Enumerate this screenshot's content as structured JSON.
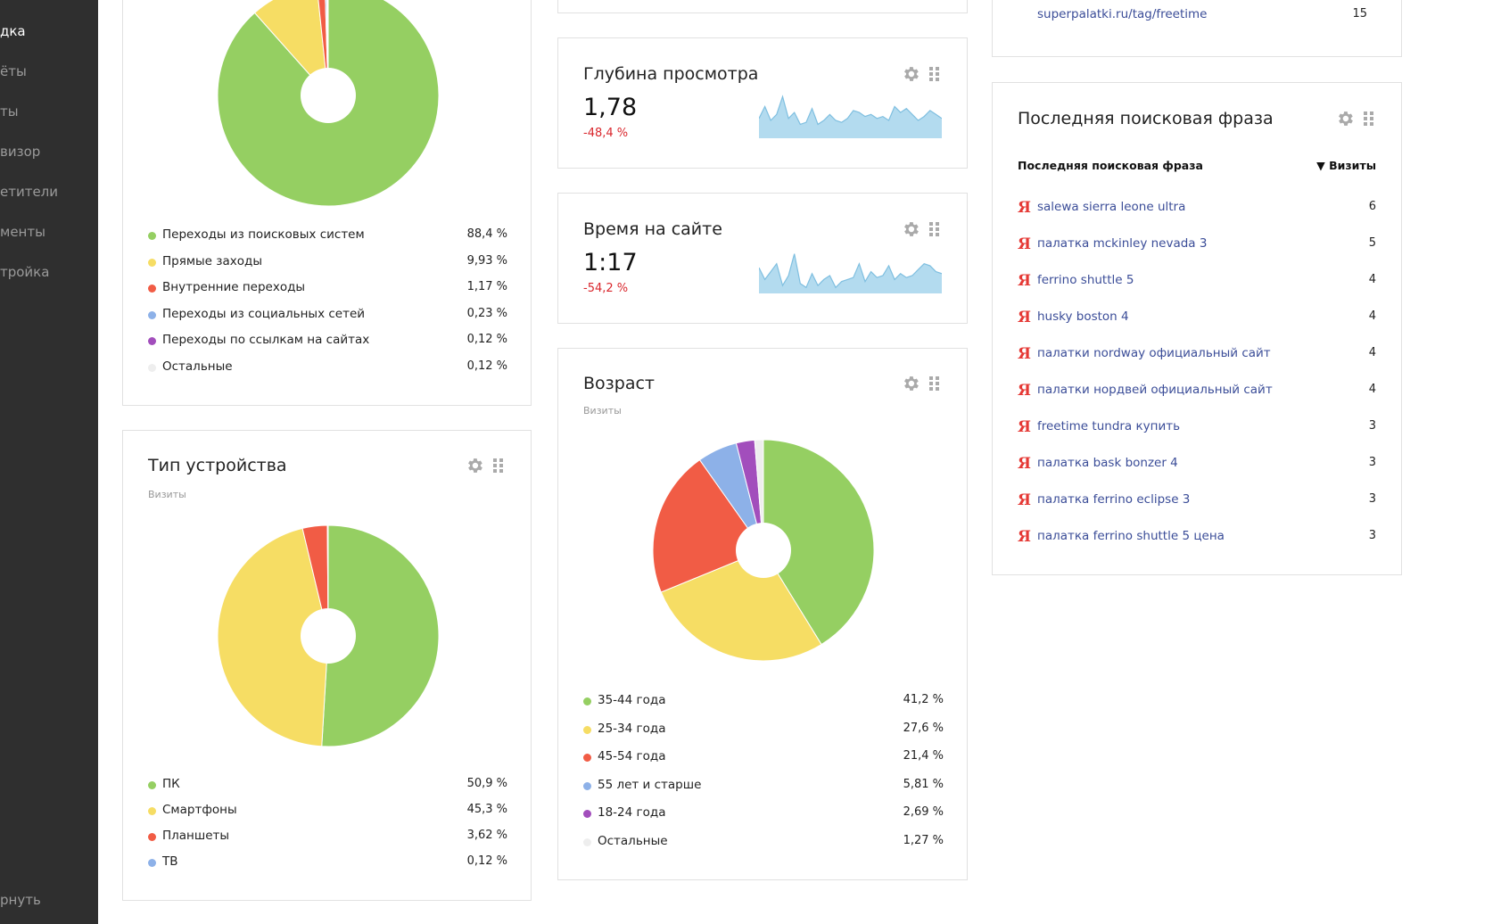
{
  "sidebar": {
    "items": [
      {
        "label": "дка",
        "active": true
      },
      {
        "label": "ёты",
        "active": false
      },
      {
        "label": "ты",
        "active": false
      },
      {
        "label": "визор",
        "active": false
      },
      {
        "label": "етители",
        "active": false
      },
      {
        "label": "менты",
        "active": false
      },
      {
        "label": "тройка",
        "active": false
      }
    ],
    "collapse_label": "рнуть"
  },
  "sources_card": {
    "legend": [
      {
        "label": "Переходы из поисковых систем",
        "value": "88,4 %",
        "color": "#95cf62"
      },
      {
        "label": "Прямые заходы",
        "value": "9,93 %",
        "color": "#f6dd64"
      },
      {
        "label": "Внутренние переходы",
        "value": "1,17 %",
        "color": "#f15c45"
      },
      {
        "label": "Переходы из социальных сетей",
        "value": "0,23 %",
        "color": "#8db1e8"
      },
      {
        "label": "Переходы по ссылкам на сайтах",
        "value": "0,12 %",
        "color": "#a24ebc"
      },
      {
        "label": "Остальные",
        "value": "0,12 %",
        "color": "#eeeeee"
      }
    ]
  },
  "device_card": {
    "title": "Тип устройства",
    "subtitle": "Визиты",
    "legend": [
      {
        "label": "ПК",
        "value": "50,9 %",
        "color": "#95cf62"
      },
      {
        "label": "Смартфоны",
        "value": "45,3 %",
        "color": "#f6dd64"
      },
      {
        "label": "Планшеты",
        "value": "3,62 %",
        "color": "#f15c45"
      },
      {
        "label": "ТВ",
        "value": "0,12 %",
        "color": "#8db1e8"
      }
    ]
  },
  "depth_card": {
    "title": "Глубина просмотра",
    "value": "1,78",
    "change": "-48,4 %",
    "spark": [
      20,
      32,
      18,
      24,
      42,
      20,
      26,
      14,
      16,
      30,
      14,
      18,
      24,
      18,
      16,
      20,
      28,
      26,
      22,
      24,
      20,
      22,
      18,
      32,
      26,
      30,
      24,
      18,
      22,
      28,
      24,
      20
    ]
  },
  "time_card": {
    "title": "Время на сайте",
    "value": "1:17",
    "change": "-54,2 %",
    "spark": [
      26,
      14,
      22,
      30,
      8,
      18,
      40,
      10,
      6,
      20,
      8,
      14,
      18,
      6,
      12,
      14,
      16,
      30,
      12,
      22,
      16,
      18,
      28,
      14,
      20,
      16,
      18,
      24,
      30,
      28,
      22,
      20
    ]
  },
  "age_card": {
    "title": "Возраст",
    "subtitle": "Визиты",
    "legend": [
      {
        "label": "35-44 года",
        "value": "41,2 %",
        "color": "#95cf62"
      },
      {
        "label": "25-34 года",
        "value": "27,6 %",
        "color": "#f6dd64"
      },
      {
        "label": "45-54 года",
        "value": "21,4 %",
        "color": "#f15c45"
      },
      {
        "label": "55 лет и старше",
        "value": "5,81 %",
        "color": "#8db1e8"
      },
      {
        "label": "18-24 года",
        "value": "2,69 %",
        "color": "#a24ebc"
      },
      {
        "label": "Остальные",
        "value": "1,27 %",
        "color": "#eeeeee"
      }
    ]
  },
  "top_link_card": {
    "url": "superpalatki.ru/tag/freetime",
    "count": "15"
  },
  "search_card": {
    "title": "Последняя поисковая фраза",
    "col_phrase": "Последняя поисковая фраза",
    "col_visits": "▼ Визиты",
    "ya_glyph": "Я",
    "rows": [
      {
        "phrase": "salewa sierra leone ultra",
        "count": "6"
      },
      {
        "phrase": "палатка mckinley nevada 3",
        "count": "5"
      },
      {
        "phrase": "ferrino shuttle 5",
        "count": "4"
      },
      {
        "phrase": "husky boston 4",
        "count": "4"
      },
      {
        "phrase": "палатки nordway официальный сайт",
        "count": "4"
      },
      {
        "phrase": "палатки нордвей официальный сайт",
        "count": "4"
      },
      {
        "phrase": "freetime tundra купить",
        "count": "3"
      },
      {
        "phrase": "палатка bask bonzer 4",
        "count": "3"
      },
      {
        "phrase": "палатка ferrino eclipse 3",
        "count": "3"
      },
      {
        "phrase": "палатка ferrino shuttle 5 цена",
        "count": "3"
      }
    ]
  },
  "icons": {
    "settings": "gear-icon",
    "drag": "drag-handle-icon"
  },
  "colors": {
    "accent_red": "#d9262c",
    "link": "#3b4d98",
    "spark_fill": "#b3dbef",
    "spark_line": "#7fbfe0"
  }
}
